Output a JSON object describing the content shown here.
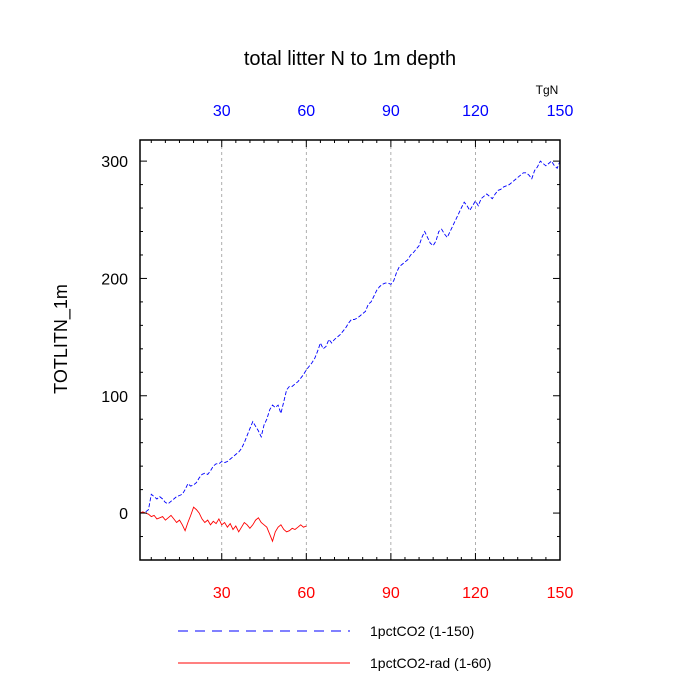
{
  "chart_data": {
    "type": "line",
    "title": "total litter N to 1m depth",
    "ylabel": "TOTLITN_1m",
    "units": "TgN",
    "xlim": [
      1,
      150
    ],
    "ylim": [
      -40,
      318
    ],
    "x_ticks": [
      30,
      60,
      90,
      120,
      150
    ],
    "y_ticks": [
      0,
      100,
      200,
      300
    ],
    "grid": "vertical dashed at x ticks",
    "legend_position": "bottom",
    "series": [
      {
        "name": "1pctCO2 (1-150)",
        "color": "#0000ff",
        "style": "dashed",
        "x_start": 1,
        "values": [
          0,
          0,
          1,
          3,
          16,
          14,
          12,
          14,
          12,
          9,
          8,
          10,
          12,
          14,
          15,
          16,
          20,
          25,
          23,
          24,
          26,
          30,
          33,
          34,
          33,
          36,
          40,
          42,
          42,
          44,
          43,
          44,
          46,
          48,
          50,
          52,
          55,
          60,
          66,
          72,
          78,
          74,
          70,
          65,
          75,
          80,
          88,
          92,
          90,
          92,
          85,
          95,
          105,
          108,
          108,
          110,
          112,
          115,
          118,
          122,
          125,
          128,
          132,
          138,
          145,
          140,
          142,
          148,
          145,
          148,
          150,
          152,
          155,
          158,
          162,
          165,
          165,
          166,
          168,
          170,
          172,
          178,
          180,
          185,
          190,
          193,
          195,
          196,
          196,
          195,
          198,
          205,
          210,
          212,
          214,
          216,
          220,
          222,
          225,
          228,
          235,
          240,
          235,
          230,
          228,
          232,
          240,
          242,
          238,
          235,
          240,
          245,
          250,
          255,
          260,
          265,
          262,
          258,
          262,
          266,
          262,
          268,
          270,
          272,
          270,
          268,
          272,
          275,
          276,
          278,
          279,
          280,
          282,
          284,
          286,
          288,
          290,
          290,
          288,
          285,
          292,
          295,
          300,
          298,
          296,
          298,
          300,
          296,
          294,
          300
        ]
      },
      {
        "name": "1pctCO2-rad (1-60)",
        "color": "#ff0000",
        "style": "solid",
        "x_start": 1,
        "values": [
          0,
          1,
          0,
          -1,
          -3,
          -2,
          -5,
          -4,
          -3,
          -6,
          -4,
          -2,
          -5,
          -8,
          -6,
          -10,
          -15,
          -8,
          -2,
          5,
          3,
          0,
          -5,
          -8,
          -6,
          -10,
          -7,
          -9,
          -5,
          -10,
          -8,
          -12,
          -9,
          -14,
          -11,
          -16,
          -12,
          -8,
          -10,
          -13,
          -10,
          -6,
          -4,
          -8,
          -10,
          -12,
          -18,
          -24,
          -16,
          -12,
          -10,
          -14,
          -16,
          -15,
          -13,
          -14,
          -12,
          -10,
          -12,
          -11
        ]
      }
    ]
  }
}
